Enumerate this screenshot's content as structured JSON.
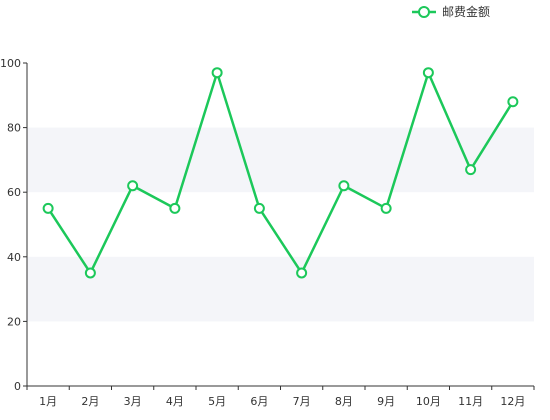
{
  "chart_data": {
    "type": "line",
    "categories": [
      "1月",
      "2月",
      "3月",
      "4月",
      "5月",
      "6月",
      "7月",
      "8月",
      "9月",
      "10月",
      "11月",
      "12月"
    ],
    "series": [
      {
        "name": "邮费金额",
        "values": [
          55,
          35,
          62,
          55,
          97,
          55,
          35,
          62,
          55,
          97,
          67,
          88
        ]
      }
    ],
    "ylim": [
      0,
      100
    ],
    "yticks": [
      0,
      20,
      40,
      60,
      80,
      100
    ],
    "grid": "alternating horizontal bands",
    "legend_position": "top-right",
    "colors": {
      "series": "#1cc85a",
      "band": "#f4f5f9",
      "axis": "#333333"
    }
  }
}
